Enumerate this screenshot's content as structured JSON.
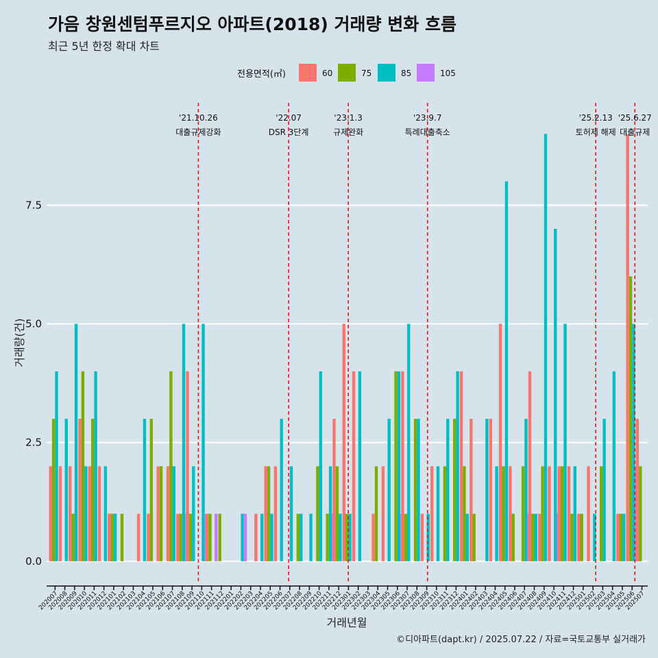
{
  "header": {
    "title": "가음 창원센텀푸르지오 아파트(2018) 거래량 변화 흐름",
    "subtitle": "최근 5년 한정 확대 차트"
  },
  "caption": "©디아파트(dapt.kr) / 2025.07.22 / 자료=국토교통부 실거래가",
  "colors": {
    "background": "#d6e3ea",
    "grid": "#ffffff",
    "vline": "#e8151b",
    "s60": "#f8766d",
    "s75": "#7cae00",
    "s85": "#00bfc4",
    "s105": "#c77cff"
  },
  "chart_data": {
    "type": "bar",
    "title": "가음 창원센텀푸르지오 아파트(2018) 거래량 변화 흐름",
    "xlabel": "거래년월",
    "ylabel": "거래량(건)",
    "ylim": [
      -0.45,
      9.8
    ],
    "yticks": [
      0,
      2.5,
      5,
      7.5
    ],
    "ytick_labels": [
      "0.0",
      "2.5",
      "5.0",
      "7.5"
    ],
    "grid": true,
    "legend": {
      "title": "전용면적(㎡)",
      "position": "top",
      "labels": [
        "60",
        "75",
        "85",
        "105"
      ]
    },
    "categories": [
      "202007",
      "202008",
      "202009",
      "202010",
      "202011",
      "202012",
      "202101",
      "202102",
      "202103",
      "202104",
      "202105",
      "202106",
      "202107",
      "202108",
      "202109",
      "202110",
      "202111",
      "202112",
      "202201",
      "202202",
      "202203",
      "202204",
      "202205",
      "202206",
      "202207",
      "202208",
      "202209",
      "202210",
      "202211",
      "202212",
      "202301",
      "202302",
      "202303",
      "202304",
      "202305",
      "202306",
      "202307",
      "202308",
      "202309",
      "202310",
      "202311",
      "202312",
      "202401",
      "202402",
      "202403",
      "202404",
      "202405",
      "202406",
      "202407",
      "202408",
      "202409",
      "202410",
      "202411",
      "202412",
      "202501",
      "202502",
      "202503",
      "202504",
      "202505",
      "202506",
      "202507"
    ],
    "tick_labels": [
      "202007",
      "202008",
      "202009",
      "202010",
      "202011",
      "202012",
      "202101",
      "202102",
      "202103",
      "202104",
      "202105",
      "202106",
      "202107",
      "202108",
      "202109",
      "202110",
      "202111",
      "202112",
      "202201",
      "202202",
      "202203",
      "202204",
      "202205",
      "202206",
      "202207",
      "202208",
      "202209",
      "202210",
      "202211",
      "202212",
      "202301",
      "202302",
      "202303",
      "202304",
      "202305",
      "202306",
      "202307",
      "202308",
      "202309",
      "202310",
      "202311",
      "202312",
      "202401",
      "202402",
      "202403",
      "202404",
      "202405",
      "202406",
      "202407",
      "202408",
      "202409",
      "202410",
      "202411",
      "202412",
      "202501",
      "202502",
      "202503",
      "202504",
      "202505",
      "202506",
      "202507"
    ],
    "series": [
      {
        "name": "60",
        "values": [
          2,
          2,
          2,
          3,
          2,
          2,
          1,
          0,
          0,
          1,
          1,
          2,
          2,
          1,
          4,
          0,
          1,
          0,
          0,
          0,
          0,
          1,
          2,
          2,
          0,
          0,
          0,
          0,
          0,
          3,
          5,
          4,
          0,
          1,
          2,
          0,
          4,
          0,
          1,
          2,
          0,
          0,
          4,
          3,
          0,
          3,
          5,
          2,
          0,
          4,
          1,
          2,
          2,
          2,
          1,
          2,
          0,
          0,
          1,
          9,
          3
        ]
      },
      {
        "name": "75",
        "values": [
          3,
          0,
          1,
          4,
          3,
          0,
          1,
          1,
          0,
          0,
          3,
          2,
          4,
          1,
          1,
          0,
          1,
          1,
          0,
          0,
          0,
          0,
          2,
          0,
          0,
          1,
          0,
          2,
          1,
          2,
          1,
          0,
          0,
          2,
          0,
          4,
          1,
          3,
          0,
          0,
          2,
          3,
          2,
          1,
          0,
          0,
          2,
          1,
          2,
          1,
          2,
          0,
          2,
          1,
          1,
          0,
          2,
          0,
          1,
          6,
          2
        ]
      },
      {
        "name": "85",
        "values": [
          4,
          3,
          5,
          2,
          4,
          2,
          1,
          0,
          0,
          3,
          0,
          0,
          2,
          5,
          2,
          5,
          0,
          0,
          0,
          1,
          0,
          1,
          1,
          3,
          2,
          1,
          1,
          4,
          2,
          1,
          1,
          4,
          0,
          0,
          3,
          4,
          5,
          3,
          1,
          2,
          3,
          4,
          1,
          0,
          3,
          2,
          8,
          0,
          3,
          1,
          9,
          7,
          5,
          2,
          0,
          1,
          3,
          4,
          1,
          5,
          0
        ]
      },
      {
        "name": "105",
        "values": [
          0,
          0,
          0,
          0,
          0,
          0,
          0,
          0,
          0,
          0,
          0,
          0,
          0,
          1,
          0,
          1,
          1,
          0,
          0,
          1,
          0,
          0,
          0,
          0,
          0,
          0,
          0,
          0,
          1,
          0,
          0,
          0,
          0,
          0,
          0,
          1,
          0,
          0,
          0,
          0,
          0,
          0,
          0,
          0,
          0,
          0,
          0,
          0,
          1,
          0,
          0,
          1,
          0,
          0,
          0,
          0,
          0,
          0,
          0,
          2,
          0
        ]
      }
    ],
    "annotations": [
      {
        "date": "'21.10.26",
        "label": "대출규제강화",
        "x_index": 15.27
      },
      {
        "date": "'22.07",
        "label": "DSR 3단계",
        "x_index": 24.5
      },
      {
        "date": "'23.1.3",
        "label": "규제완화",
        "x_index": 30.6
      },
      {
        "date": "'23.9.7",
        "label": "특례대출축소",
        "x_index": 38.7
      },
      {
        "date": "'25.2.13",
        "label": "토허제 해제",
        "x_index": 55.9
      },
      {
        "date": "'25.6.27",
        "label": "대출규제",
        "x_index": 59.9
      }
    ]
  }
}
